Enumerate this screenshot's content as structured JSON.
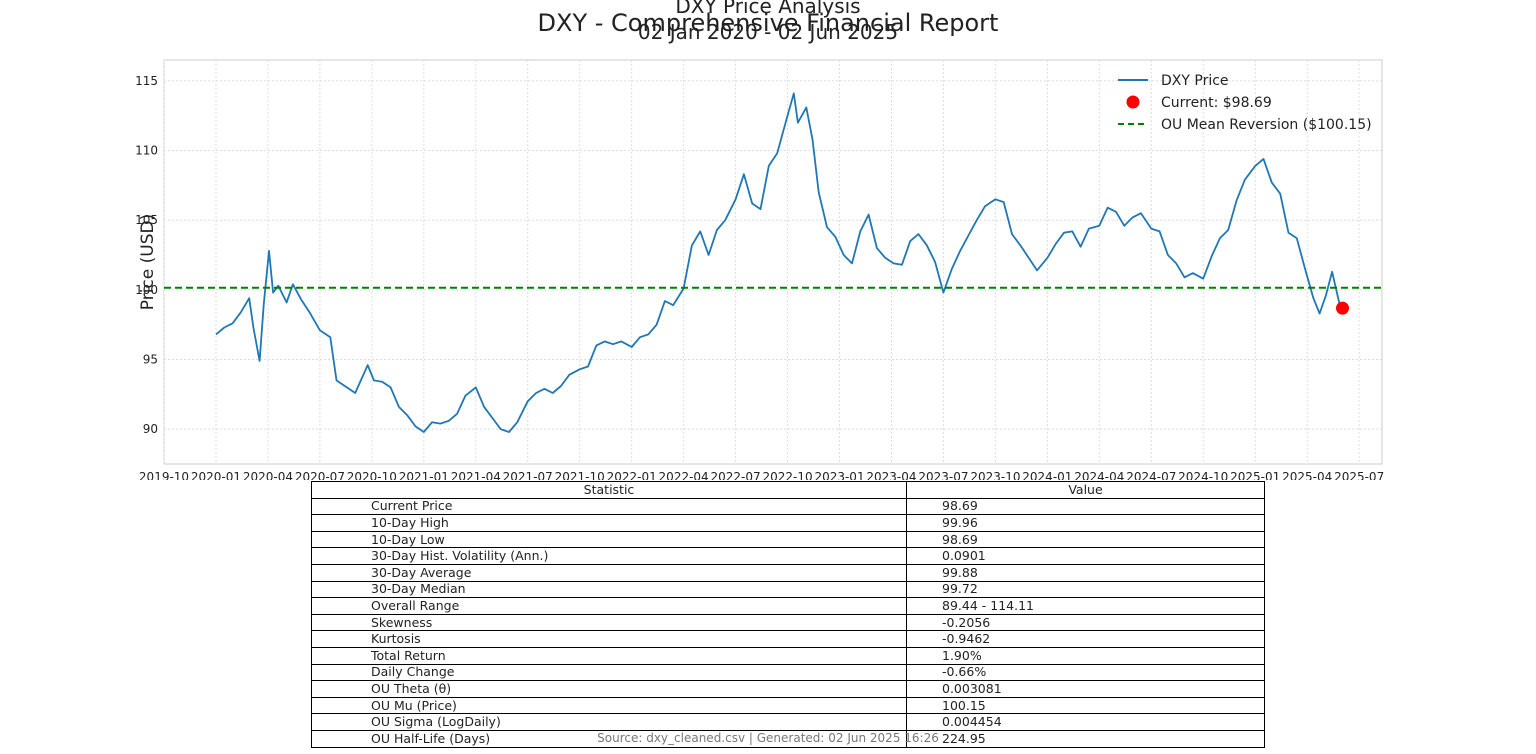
{
  "report_title": "DXY - Comprehensive Financial Report",
  "chart_data": {
    "type": "line",
    "title": "DXY Price Analysis",
    "subtitle": "02 Jan 2020 - 02 Jun 2025",
    "ylabel": "Price (USD)",
    "xlabel": "",
    "ylim": [
      87.5,
      116.5
    ],
    "yticks": [
      90,
      95,
      100,
      105,
      110,
      115
    ],
    "xticks": [
      {
        "t": 2019.75,
        "label": "2019-10"
      },
      {
        "t": 2020.0,
        "label": "2020-01"
      },
      {
        "t": 2020.25,
        "label": "2020-04"
      },
      {
        "t": 2020.5,
        "label": "2020-07"
      },
      {
        "t": 2020.75,
        "label": "2020-10"
      },
      {
        "t": 2021.0,
        "label": "2021-01"
      },
      {
        "t": 2021.25,
        "label": "2021-04"
      },
      {
        "t": 2021.5,
        "label": "2021-07"
      },
      {
        "t": 2021.75,
        "label": "2021-10"
      },
      {
        "t": 2022.0,
        "label": "2022-01"
      },
      {
        "t": 2022.25,
        "label": "2022-04"
      },
      {
        "t": 2022.5,
        "label": "2022-07"
      },
      {
        "t": 2022.75,
        "label": "2022-10"
      },
      {
        "t": 2023.0,
        "label": "2023-01"
      },
      {
        "t": 2023.25,
        "label": "2023-04"
      },
      {
        "t": 2023.5,
        "label": "2023-07"
      },
      {
        "t": 2023.75,
        "label": "2023-10"
      },
      {
        "t": 2024.0,
        "label": "2024-01"
      },
      {
        "t": 2024.25,
        "label": "2024-04"
      },
      {
        "t": 2024.5,
        "label": "2024-07"
      },
      {
        "t": 2024.75,
        "label": "2024-10"
      },
      {
        "t": 2025.0,
        "label": "2025-01"
      },
      {
        "t": 2025.25,
        "label": "2025-04"
      },
      {
        "t": 2025.5,
        "label": "2025-07"
      }
    ],
    "xlim": [
      2019.75,
      2025.61
    ],
    "grid": true,
    "legend_position": "top-right",
    "series": [
      {
        "name": "DXY Price",
        "color": "#1f77b4",
        "points": [
          [
            2020.0,
            96.8
          ],
          [
            2020.04,
            97.3
          ],
          [
            2020.08,
            97.6
          ],
          [
            2020.12,
            98.4
          ],
          [
            2020.16,
            99.4
          ],
          [
            2020.18,
            97.3
          ],
          [
            2020.21,
            94.9
          ],
          [
            2020.23,
            99.0
          ],
          [
            2020.255,
            102.8
          ],
          [
            2020.275,
            99.8
          ],
          [
            2020.3,
            100.3
          ],
          [
            2020.34,
            99.1
          ],
          [
            2020.37,
            100.4
          ],
          [
            2020.41,
            99.3
          ],
          [
            2020.45,
            98.4
          ],
          [
            2020.5,
            97.1
          ],
          [
            2020.55,
            96.6
          ],
          [
            2020.58,
            93.5
          ],
          [
            2020.62,
            93.1
          ],
          [
            2020.67,
            92.6
          ],
          [
            2020.73,
            94.6
          ],
          [
            2020.76,
            93.5
          ],
          [
            2020.8,
            93.4
          ],
          [
            2020.84,
            93.0
          ],
          [
            2020.88,
            91.6
          ],
          [
            2020.92,
            91.0
          ],
          [
            2020.96,
            90.2
          ],
          [
            2021.0,
            89.8
          ],
          [
            2021.04,
            90.5
          ],
          [
            2021.08,
            90.4
          ],
          [
            2021.12,
            90.6
          ],
          [
            2021.16,
            91.1
          ],
          [
            2021.2,
            92.4
          ],
          [
            2021.25,
            93.0
          ],
          [
            2021.29,
            91.6
          ],
          [
            2021.33,
            90.8
          ],
          [
            2021.37,
            90.0
          ],
          [
            2021.41,
            89.8
          ],
          [
            2021.45,
            90.5
          ],
          [
            2021.5,
            92.0
          ],
          [
            2021.54,
            92.6
          ],
          [
            2021.58,
            92.9
          ],
          [
            2021.62,
            92.6
          ],
          [
            2021.66,
            93.1
          ],
          [
            2021.7,
            93.9
          ],
          [
            2021.75,
            94.3
          ],
          [
            2021.79,
            94.5
          ],
          [
            2021.83,
            96.0
          ],
          [
            2021.87,
            96.3
          ],
          [
            2021.91,
            96.1
          ],
          [
            2021.95,
            96.3
          ],
          [
            2022.0,
            95.9
          ],
          [
            2022.04,
            96.6
          ],
          [
            2022.08,
            96.8
          ],
          [
            2022.12,
            97.5
          ],
          [
            2022.16,
            99.2
          ],
          [
            2022.2,
            98.9
          ],
          [
            2022.25,
            100.1
          ],
          [
            2022.29,
            103.2
          ],
          [
            2022.33,
            104.2
          ],
          [
            2022.37,
            102.5
          ],
          [
            2022.41,
            104.3
          ],
          [
            2022.45,
            105.0
          ],
          [
            2022.5,
            106.5
          ],
          [
            2022.54,
            108.3
          ],
          [
            2022.58,
            106.2
          ],
          [
            2022.62,
            105.8
          ],
          [
            2022.66,
            108.9
          ],
          [
            2022.7,
            109.8
          ],
          [
            2022.75,
            112.5
          ],
          [
            2022.78,
            114.1
          ],
          [
            2022.8,
            112.0
          ],
          [
            2022.84,
            113.1
          ],
          [
            2022.87,
            110.8
          ],
          [
            2022.9,
            107.0
          ],
          [
            2022.94,
            104.5
          ],
          [
            2022.98,
            103.8
          ],
          [
            2023.02,
            102.5
          ],
          [
            2023.06,
            101.9
          ],
          [
            2023.1,
            104.2
          ],
          [
            2023.14,
            105.4
          ],
          [
            2023.18,
            103.0
          ],
          [
            2023.22,
            102.3
          ],
          [
            2023.26,
            101.9
          ],
          [
            2023.3,
            101.8
          ],
          [
            2023.34,
            103.5
          ],
          [
            2023.38,
            104.0
          ],
          [
            2023.42,
            103.2
          ],
          [
            2023.46,
            102.0
          ],
          [
            2023.5,
            99.8
          ],
          [
            2023.54,
            101.5
          ],
          [
            2023.58,
            102.8
          ],
          [
            2023.62,
            103.9
          ],
          [
            2023.66,
            105.0
          ],
          [
            2023.7,
            106.0
          ],
          [
            2023.75,
            106.5
          ],
          [
            2023.79,
            106.3
          ],
          [
            2023.83,
            104.0
          ],
          [
            2023.87,
            103.2
          ],
          [
            2023.91,
            102.3
          ],
          [
            2023.95,
            101.4
          ],
          [
            2024.0,
            102.3
          ],
          [
            2024.04,
            103.3
          ],
          [
            2024.08,
            104.1
          ],
          [
            2024.12,
            104.2
          ],
          [
            2024.16,
            103.1
          ],
          [
            2024.2,
            104.4
          ],
          [
            2024.25,
            104.6
          ],
          [
            2024.29,
            105.9
          ],
          [
            2024.33,
            105.6
          ],
          [
            2024.37,
            104.6
          ],
          [
            2024.41,
            105.2
          ],
          [
            2024.45,
            105.5
          ],
          [
            2024.5,
            104.4
          ],
          [
            2024.54,
            104.2
          ],
          [
            2024.58,
            102.5
          ],
          [
            2024.62,
            101.9
          ],
          [
            2024.66,
            100.9
          ],
          [
            2024.7,
            101.2
          ],
          [
            2024.75,
            100.8
          ],
          [
            2024.79,
            102.4
          ],
          [
            2024.83,
            103.7
          ],
          [
            2024.87,
            104.3
          ],
          [
            2024.91,
            106.4
          ],
          [
            2024.95,
            107.9
          ],
          [
            2025.0,
            108.9
          ],
          [
            2025.04,
            109.4
          ],
          [
            2025.08,
            107.7
          ],
          [
            2025.12,
            106.9
          ],
          [
            2025.16,
            104.1
          ],
          [
            2025.2,
            103.7
          ],
          [
            2025.24,
            101.5
          ],
          [
            2025.28,
            99.4
          ],
          [
            2025.31,
            98.3
          ],
          [
            2025.34,
            99.6
          ],
          [
            2025.37,
            101.3
          ],
          [
            2025.39,
            100.0
          ],
          [
            2025.41,
            98.7
          ]
        ]
      },
      {
        "name": "Current: $98.69",
        "color": "#ff0000",
        "marker": "circle",
        "points": [
          [
            2025.42,
            98.69
          ]
        ]
      },
      {
        "name": "OU Mean Reversion ($100.15)",
        "color": "#008000",
        "style": "dashed",
        "hline": 100.15
      }
    ],
    "legend": [
      {
        "label": "DXY Price",
        "kind": "line",
        "color": "#1f77b4"
      },
      {
        "label": "Current: $98.69",
        "kind": "dot",
        "color": "#ff0000"
      },
      {
        "label": "OU Mean Reversion ($100.15)",
        "kind": "dashed",
        "color": "#008000"
      }
    ]
  },
  "stats_table": {
    "headers": [
      "Statistic",
      "Value"
    ],
    "rows": [
      [
        "Current Price",
        "98.69"
      ],
      [
        "10-Day High",
        "99.96"
      ],
      [
        "10-Day Low",
        "98.69"
      ],
      [
        "30-Day Hist. Volatility (Ann.)",
        "0.0901"
      ],
      [
        "30-Day Average",
        "99.88"
      ],
      [
        "30-Day Median",
        "99.72"
      ],
      [
        "Overall Range",
        "89.44 - 114.11"
      ],
      [
        "Skewness",
        "-0.2056"
      ],
      [
        "Kurtosis",
        "-0.9462"
      ],
      [
        "Total Return",
        "1.90%"
      ],
      [
        "Daily Change",
        "-0.66%"
      ],
      [
        "OU Theta (θ)",
        "0.003081"
      ],
      [
        "OU Mu (Price)",
        "100.15"
      ],
      [
        "OU Sigma (LogDaily)",
        "0.004454"
      ],
      [
        "OU Half-Life (Days)",
        "224.95"
      ]
    ]
  },
  "footer_note": "Source: dxy_cleaned.csv | Generated: 02 Jun 2025 16:26"
}
